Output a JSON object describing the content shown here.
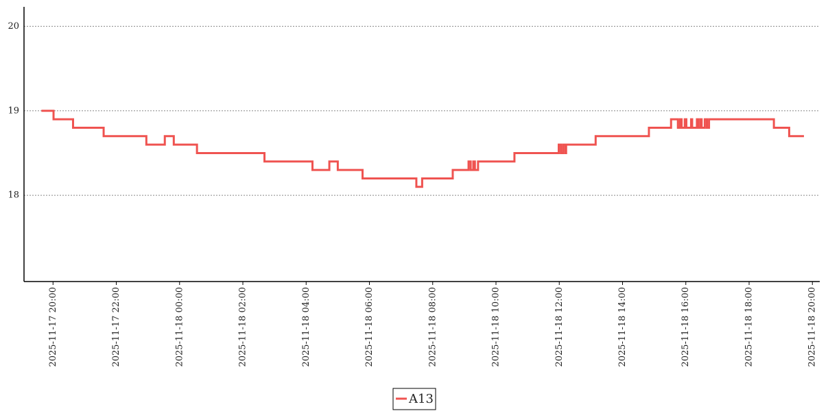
{
  "chart_data": {
    "type": "line",
    "step": true,
    "x": [
      "2025-11-17 19:38",
      "2025-11-17 20:01",
      "2025-11-17 20:38",
      "2025-11-17 21:36",
      "2025-11-17 22:57",
      "2025-11-17 23:32",
      "2025-11-17 23:49",
      "2025-11-18 00:33",
      "2025-11-18 02:41",
      "2025-11-18 04:12",
      "2025-11-18 04:44",
      "2025-11-18 05:00",
      "2025-11-18 05:47",
      "2025-11-18 07:29",
      "2025-11-18 07:40",
      "2025-11-18 08:38",
      "2025-11-18 09:08",
      "2025-11-18 09:12",
      "2025-11-18 09:17",
      "2025-11-18 09:20",
      "2025-11-18 09:26",
      "2025-11-18 10:35",
      "2025-11-18 11:59",
      "2025-11-18 12:03",
      "2025-11-18 12:07",
      "2025-11-18 12:11",
      "2025-11-18 12:13",
      "2025-11-18 13:09",
      "2025-11-18 14:50",
      "2025-11-18 15:32",
      "2025-11-18 15:45",
      "2025-11-18 15:49",
      "2025-11-18 15:52",
      "2025-11-18 15:58",
      "2025-11-18 16:01",
      "2025-11-18 16:10",
      "2025-11-18 16:12",
      "2025-11-18 16:21",
      "2025-11-18 16:24",
      "2025-11-18 16:28",
      "2025-11-18 16:30",
      "2025-11-18 16:36",
      "2025-11-18 16:40",
      "2025-11-18 16:44",
      "2025-11-18 18:47",
      "2025-11-18 19:16",
      "2025-11-18 19:44"
    ],
    "series": [
      {
        "name": "A13",
        "color": "#ef5350",
        "values": [
          19.0,
          18.9,
          18.8,
          18.7,
          18.6,
          18.7,
          18.6,
          18.5,
          18.4,
          18.3,
          18.4,
          18.3,
          18.2,
          18.1,
          18.2,
          18.3,
          18.4,
          18.3,
          18.4,
          18.3,
          18.4,
          18.5,
          18.6,
          18.5,
          18.6,
          18.5,
          18.6,
          18.7,
          18.8,
          18.9,
          18.8,
          18.9,
          18.8,
          18.9,
          18.8,
          18.9,
          18.8,
          18.9,
          18.8,
          18.9,
          18.8,
          18.9,
          18.8,
          18.9,
          18.8,
          18.7,
          18.7
        ]
      }
    ],
    "xlim": [
      "2025-11-17 19:05",
      "2025-11-18 20:14"
    ],
    "xticks": [
      "2025-11-17 20:00",
      "2025-11-17 22:00",
      "2025-11-18 00:00",
      "2025-11-18 02:00",
      "2025-11-18 04:00",
      "2025-11-18 06:00",
      "2025-11-18 08:00",
      "2025-11-18 10:00",
      "2025-11-18 12:00",
      "2025-11-18 14:00",
      "2025-11-18 16:00",
      "2025-11-18 18:00",
      "2025-11-18 20:00"
    ],
    "ylim": [
      16.98,
      20.23
    ],
    "yticks": [
      18,
      19,
      20
    ],
    "grid": true,
    "legend": "bottom"
  }
}
